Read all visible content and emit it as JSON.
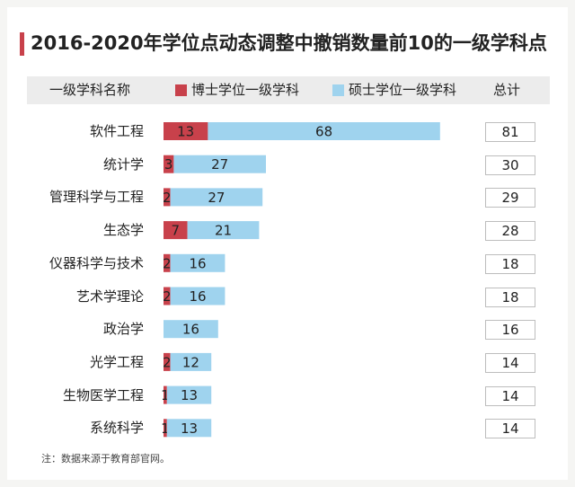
{
  "header": {
    "title": "2016-2020年学位点动态调整中撤销数量前10的一级学科点",
    "col_name": "一级学科名称",
    "col_total": "总计"
  },
  "note": "注：数据来源于教育部官网。",
  "colors": {
    "doctor": "#c8414b",
    "master": "#9fd3ee",
    "accent": "#c8414b"
  },
  "chart_data": {
    "type": "bar",
    "orientation": "horizontal",
    "stacked": true,
    "title": "2016-2020年学位点动态调整中撤销数量前10的一级学科点",
    "categories": [
      "软件工程",
      "统计学",
      "管理科学与工程",
      "生态学",
      "仪器科学与技术",
      "艺术学理论",
      "政治学",
      "光学工程",
      "生物医学工程",
      "系统科学"
    ],
    "series": [
      {
        "name": "博士学位一级学科",
        "values": [
          13,
          3,
          2,
          7,
          2,
          2,
          0,
          2,
          1,
          1
        ]
      },
      {
        "name": "硕士学位一级学科",
        "values": [
          68,
          27,
          27,
          21,
          16,
          16,
          16,
          12,
          13,
          13
        ]
      }
    ],
    "totals": [
      81,
      30,
      29,
      28,
      18,
      18,
      16,
      14,
      14,
      14
    ],
    "legend": "top"
  }
}
